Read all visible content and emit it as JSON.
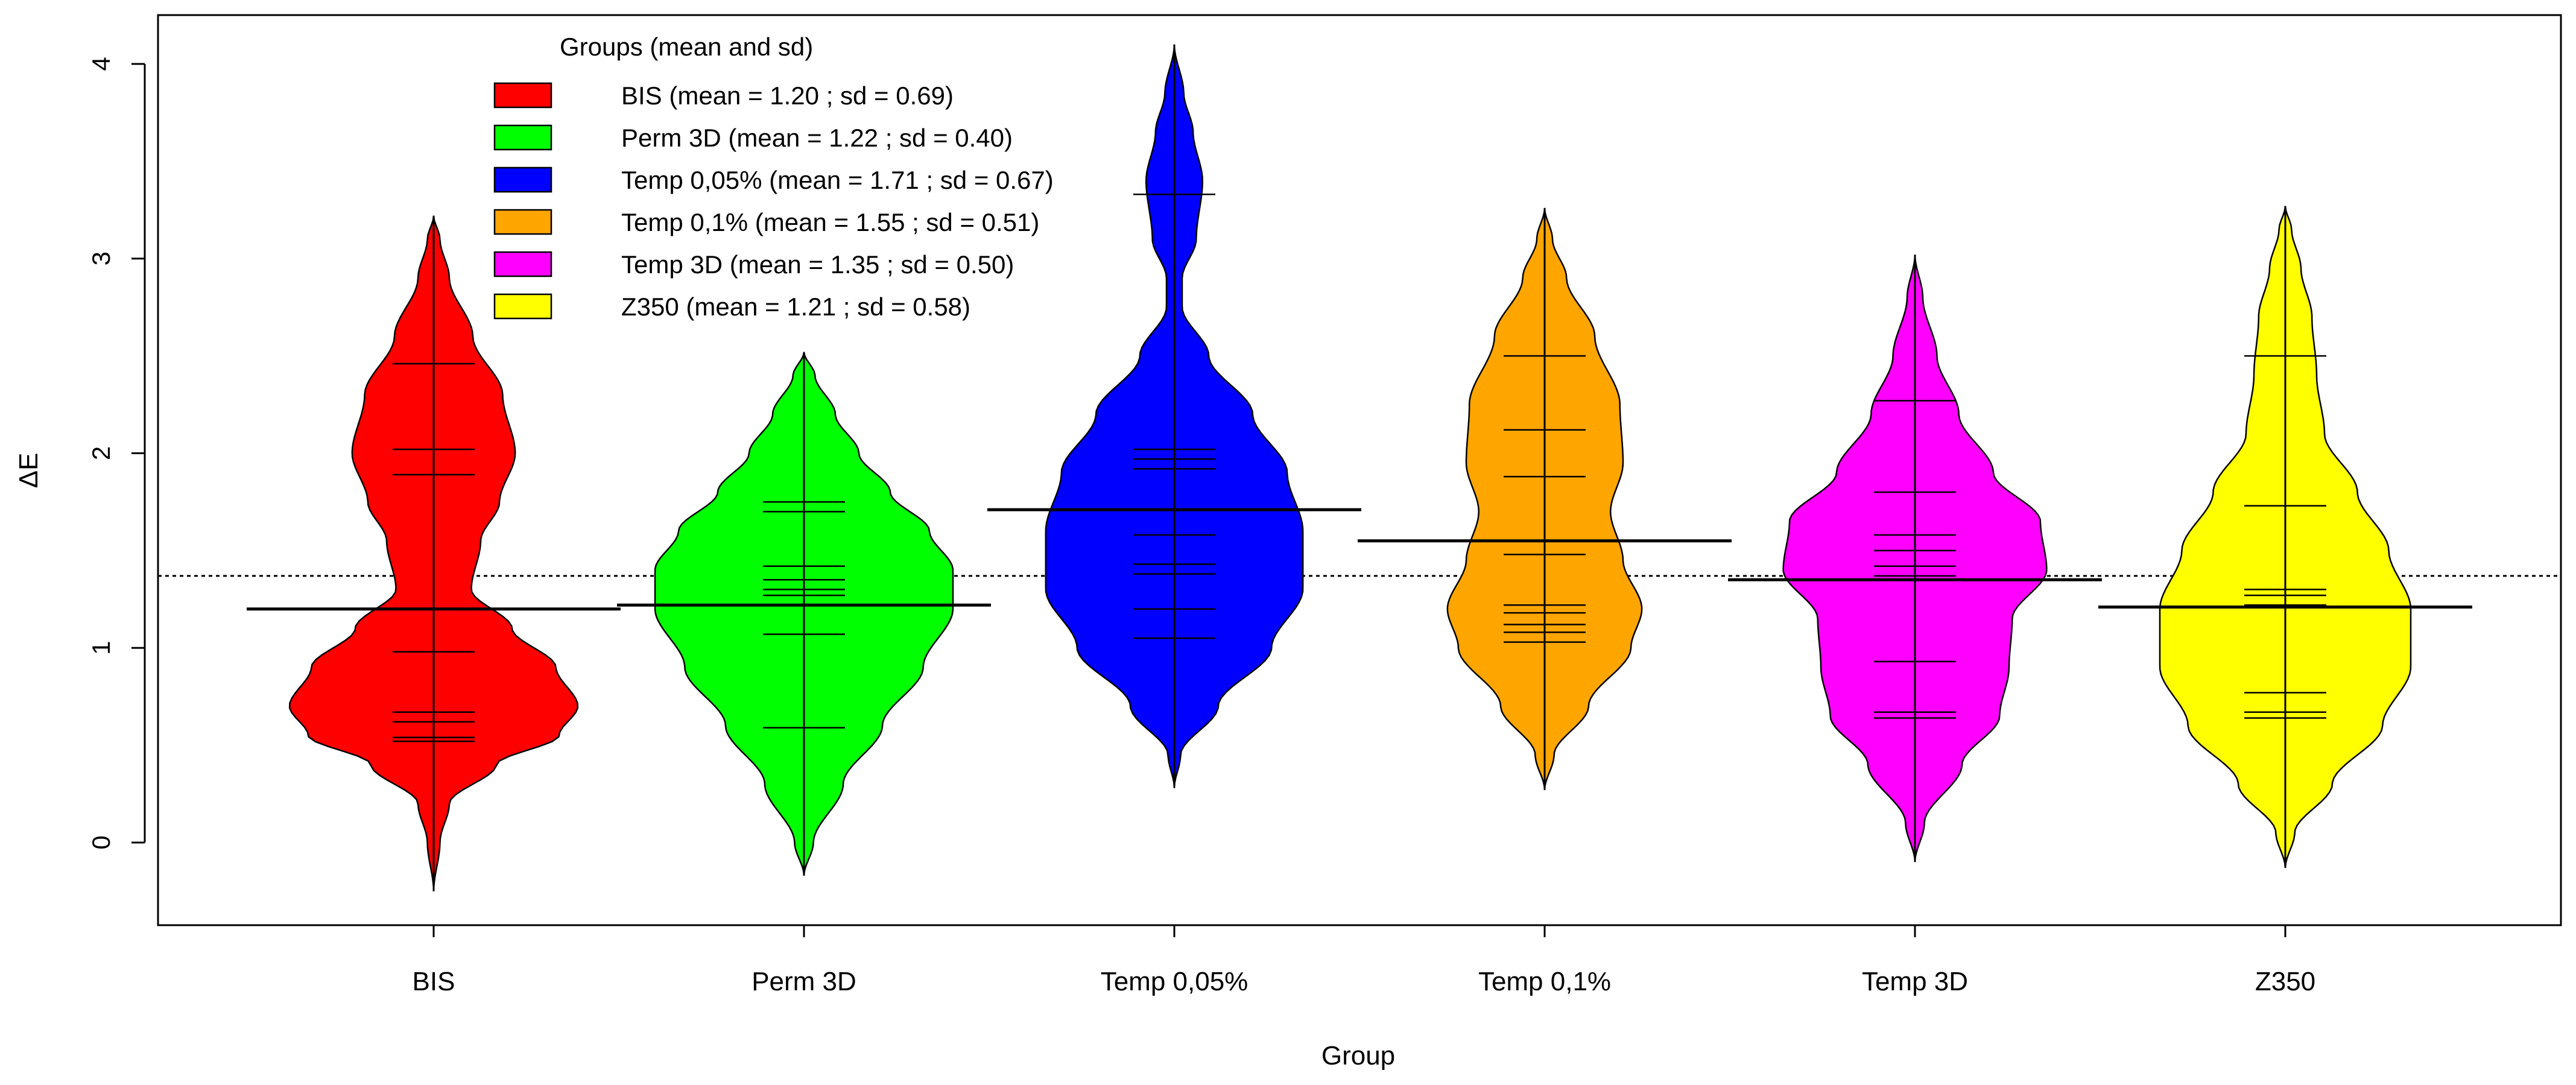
{
  "chart_data": {
    "type": "beanplot",
    "title": "",
    "xlabel": "Group",
    "ylabel": "ΔE",
    "ylim": [
      -0.45,
      4.2
    ],
    "yticks": [
      0,
      1,
      2,
      3,
      4
    ],
    "overall_mean": 1.37,
    "legend": {
      "title": "Groups (mean and sd)",
      "placement": "top-left",
      "entries": [
        "BIS  (mean = 1.20 ; sd = 0.69)",
        "Perm 3D  (mean = 1.22 ; sd = 0.40)",
        "Temp 0,05%  (mean = 1.71 ; sd = 0.67)",
        "Temp 0,1%  (mean = 1.55 ; sd = 0.51)",
        "Temp 3D  (mean = 1.35 ; sd = 0.50)",
        "Z350  (mean = 1.21 ; sd = 0.58)"
      ]
    },
    "groups": [
      {
        "name": "BIS",
        "color": "#ff0000",
        "mean": 1.2,
        "sd": 0.69,
        "range": [
          -0.25,
          3.22
        ],
        "observations": [
          2.46,
          2.02,
          1.89,
          1.2,
          0.98,
          0.67,
          0.62,
          0.54,
          0.52
        ],
        "density": [
          [
            -0.25,
            0.0
          ],
          [
            0.0,
            0.04
          ],
          [
            0.2,
            0.1
          ],
          [
            0.4,
            0.4
          ],
          [
            0.55,
            0.8
          ],
          [
            0.7,
            0.92
          ],
          [
            0.9,
            0.78
          ],
          [
            1.1,
            0.5
          ],
          [
            1.3,
            0.24
          ],
          [
            1.55,
            0.3
          ],
          [
            1.75,
            0.42
          ],
          [
            2.0,
            0.52
          ],
          [
            2.3,
            0.44
          ],
          [
            2.6,
            0.25
          ],
          [
            2.9,
            0.1
          ],
          [
            3.1,
            0.04
          ],
          [
            3.22,
            0.0
          ]
        ]
      },
      {
        "name": "Perm 3D",
        "color": "#00ff00",
        "mean": 1.22,
        "sd": 0.4,
        "range": [
          -0.17,
          2.52
        ],
        "observations": [
          1.75,
          1.7,
          1.42,
          1.35,
          1.3,
          1.27,
          1.07,
          0.59
        ],
        "density": [
          [
            -0.17,
            0.0
          ],
          [
            0.0,
            0.06
          ],
          [
            0.3,
            0.25
          ],
          [
            0.6,
            0.5
          ],
          [
            0.9,
            0.76
          ],
          [
            1.2,
            0.95
          ],
          [
            1.4,
            0.95
          ],
          [
            1.6,
            0.8
          ],
          [
            1.8,
            0.55
          ],
          [
            2.0,
            0.35
          ],
          [
            2.2,
            0.2
          ],
          [
            2.4,
            0.07
          ],
          [
            2.52,
            0.0
          ]
        ]
      },
      {
        "name": "Temp 0,05%",
        "color": "#0000ff",
        "mean": 1.71,
        "sd": 0.67,
        "range": [
          0.28,
          4.1
        ],
        "observations": [
          3.33,
          2.02,
          1.97,
          1.92,
          1.58,
          1.43,
          1.38,
          1.2,
          1.05
        ],
        "density": [
          [
            0.28,
            0.0
          ],
          [
            0.45,
            0.04
          ],
          [
            0.7,
            0.28
          ],
          [
            1.0,
            0.62
          ],
          [
            1.3,
            0.82
          ],
          [
            1.6,
            0.82
          ],
          [
            1.9,
            0.72
          ],
          [
            2.2,
            0.5
          ],
          [
            2.5,
            0.22
          ],
          [
            2.75,
            0.05
          ],
          [
            2.9,
            0.05
          ],
          [
            3.1,
            0.14
          ],
          [
            3.4,
            0.18
          ],
          [
            3.65,
            0.12
          ],
          [
            3.85,
            0.06
          ],
          [
            4.1,
            0.0
          ]
        ]
      },
      {
        "name": "Temp 0,1%",
        "color": "#ffa500",
        "mean": 1.55,
        "sd": 0.51,
        "range": [
          0.27,
          3.26
        ],
        "observations": [
          2.5,
          2.12,
          1.88,
          1.48,
          1.22,
          1.18,
          1.12,
          1.08,
          1.03
        ],
        "density": [
          [
            0.27,
            0.0
          ],
          [
            0.45,
            0.06
          ],
          [
            0.7,
            0.28
          ],
          [
            1.0,
            0.55
          ],
          [
            1.2,
            0.62
          ],
          [
            1.45,
            0.5
          ],
          [
            1.7,
            0.42
          ],
          [
            1.95,
            0.5
          ],
          [
            2.25,
            0.48
          ],
          [
            2.6,
            0.32
          ],
          [
            2.9,
            0.14
          ],
          [
            3.1,
            0.05
          ],
          [
            3.26,
            0.0
          ]
        ]
      },
      {
        "name": "Temp 3D",
        "color": "#ff00ff",
        "mean": 1.35,
        "sd": 0.5,
        "range": [
          -0.1,
          3.02
        ],
        "observations": [
          2.27,
          1.8,
          1.58,
          1.5,
          1.42,
          1.37,
          0.93,
          0.67,
          0.64
        ],
        "density": [
          [
            -0.1,
            0.0
          ],
          [
            0.1,
            0.06
          ],
          [
            0.4,
            0.3
          ],
          [
            0.65,
            0.54
          ],
          [
            0.9,
            0.6
          ],
          [
            1.15,
            0.62
          ],
          [
            1.4,
            0.84
          ],
          [
            1.65,
            0.8
          ],
          [
            1.9,
            0.5
          ],
          [
            2.2,
            0.28
          ],
          [
            2.5,
            0.14
          ],
          [
            2.8,
            0.05
          ],
          [
            3.02,
            0.0
          ]
        ]
      },
      {
        "name": "Z350",
        "color": "#ffff00",
        "mean": 1.21,
        "sd": 0.58,
        "range": [
          -0.13,
          3.27
        ],
        "observations": [
          2.5,
          1.73,
          1.3,
          1.27,
          1.22,
          0.77,
          0.67,
          0.64
        ],
        "density": [
          [
            -0.13,
            0.0
          ],
          [
            0.05,
            0.06
          ],
          [
            0.3,
            0.3
          ],
          [
            0.6,
            0.62
          ],
          [
            0.9,
            0.8
          ],
          [
            1.2,
            0.8
          ],
          [
            1.5,
            0.66
          ],
          [
            1.8,
            0.46
          ],
          [
            2.1,
            0.25
          ],
          [
            2.4,
            0.2
          ],
          [
            2.7,
            0.17
          ],
          [
            2.95,
            0.1
          ],
          [
            3.15,
            0.04
          ],
          [
            3.27,
            0.0
          ]
        ]
      }
    ]
  }
}
